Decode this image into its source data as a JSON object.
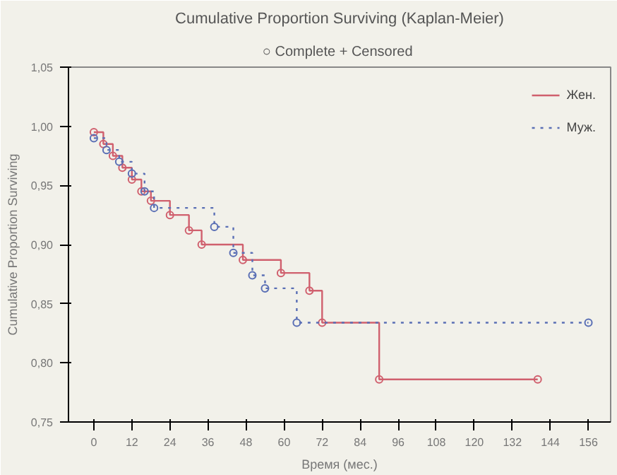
{
  "chart_data": {
    "type": "step",
    "title": "Cumulative Proportion Surviving (Kaplan-Meier)",
    "subtitle": "○ Complete  + Censored",
    "xlabel": "Время (мес.)",
    "ylabel": "Cumulative Proportion Surviving",
    "xlim": [
      -8,
      163
    ],
    "ylim": [
      0.75,
      1.05
    ],
    "xticks": [
      0,
      12,
      24,
      36,
      48,
      60,
      72,
      84,
      96,
      108,
      120,
      132,
      144,
      156
    ],
    "yticks": [
      {
        "value": 0.75,
        "label": "0,75"
      },
      {
        "value": 0.8,
        "label": "0,80"
      },
      {
        "value": 0.85,
        "label": "0,85"
      },
      {
        "value": 0.9,
        "label": "0,90"
      },
      {
        "value": 0.95,
        "label": "0,95"
      },
      {
        "value": 1.0,
        "label": "1,00"
      },
      {
        "value": 1.05,
        "label": "1,05"
      }
    ],
    "legend": "top right",
    "marker": "circle",
    "series": [
      {
        "name": "Жен.",
        "color": "#d0606e",
        "line_style": "solid",
        "x": [
          0,
          3,
          6,
          9,
          12,
          15,
          18,
          24,
          30,
          34,
          47,
          59,
          68,
          72,
          90,
          140
        ],
        "values": [
          0.995,
          0.985,
          0.975,
          0.965,
          0.955,
          0.945,
          0.937,
          0.925,
          0.912,
          0.9,
          0.887,
          0.876,
          0.861,
          0.834,
          0.786,
          0.786
        ]
      },
      {
        "name": "Муж.",
        "color": "#5a6fb5",
        "line_style": "dotted",
        "x": [
          0,
          4,
          8,
          12,
          16,
          19,
          38,
          44,
          50,
          54,
          64,
          156
        ],
        "values": [
          0.99,
          0.98,
          0.97,
          0.96,
          0.945,
          0.931,
          0.915,
          0.893,
          0.874,
          0.863,
          0.834,
          0.834
        ]
      }
    ]
  }
}
